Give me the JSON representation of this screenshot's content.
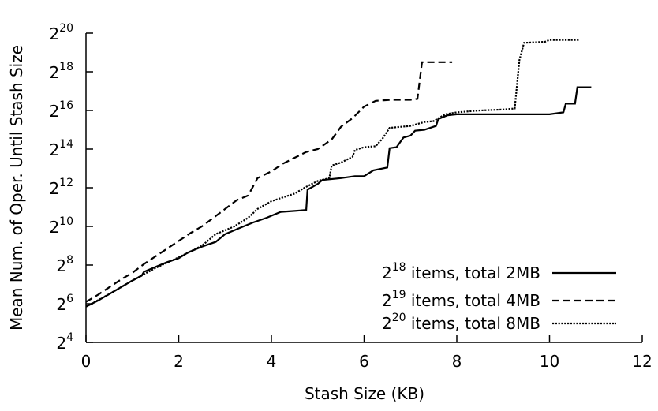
{
  "chart_data": {
    "type": "line",
    "title": "",
    "xlabel": "Stash Size (KB)",
    "ylabel": "Mean Num. of Oper. Until Stash Size",
    "xlim": [
      0,
      12
    ],
    "ylim_log2": [
      4,
      20
    ],
    "y_scale": "log2",
    "x_ticks": [
      0,
      2,
      4,
      6,
      8,
      10,
      12
    ],
    "y_ticks": [
      {
        "base": "2",
        "exp": "4"
      },
      {
        "base": "2",
        "exp": "6"
      },
      {
        "base": "2",
        "exp": "8"
      },
      {
        "base": "2",
        "exp": "10"
      },
      {
        "base": "2",
        "exp": "12"
      },
      {
        "base": "2",
        "exp": "14"
      },
      {
        "base": "2",
        "exp": "16"
      },
      {
        "base": "2",
        "exp": "18"
      },
      {
        "base": "2",
        "exp": "20"
      }
    ],
    "grid": false,
    "legend_position": "bottom-right",
    "series": [
      {
        "legend_base": "2",
        "legend_exp": "18",
        "legend_rest": " items, total 2MB",
        "dash": "solid",
        "color": "#000000",
        "points": [
          [
            0,
            5.85
          ],
          [
            0.25,
            6.15
          ],
          [
            0.5,
            6.5
          ],
          [
            0.75,
            6.85
          ],
          [
            1.0,
            7.2
          ],
          [
            1.2,
            7.45
          ],
          [
            1.25,
            7.65
          ],
          [
            1.5,
            7.9
          ],
          [
            1.75,
            8.15
          ],
          [
            2.0,
            8.35
          ],
          [
            2.2,
            8.65
          ],
          [
            2.5,
            8.95
          ],
          [
            2.8,
            9.2
          ],
          [
            3.0,
            9.6
          ],
          [
            3.3,
            9.9
          ],
          [
            3.6,
            10.2
          ],
          [
            3.9,
            10.45
          ],
          [
            4.0,
            10.55
          ],
          [
            4.2,
            10.75
          ],
          [
            4.5,
            10.8
          ],
          [
            4.75,
            10.85
          ],
          [
            4.78,
            11.9
          ],
          [
            5.0,
            12.2
          ],
          [
            5.1,
            12.4
          ],
          [
            5.5,
            12.5
          ],
          [
            5.8,
            12.6
          ],
          [
            6.0,
            12.6
          ],
          [
            6.2,
            12.9
          ],
          [
            6.5,
            13.05
          ],
          [
            6.55,
            14.05
          ],
          [
            6.7,
            14.1
          ],
          [
            6.85,
            14.6
          ],
          [
            7.0,
            14.7
          ],
          [
            7.1,
            14.95
          ],
          [
            7.3,
            15.0
          ],
          [
            7.55,
            15.2
          ],
          [
            7.6,
            15.55
          ],
          [
            7.8,
            15.75
          ],
          [
            8.0,
            15.8
          ],
          [
            9.5,
            15.8
          ],
          [
            10.0,
            15.8
          ],
          [
            10.3,
            15.9
          ],
          [
            10.35,
            16.35
          ],
          [
            10.55,
            16.35
          ],
          [
            10.6,
            17.2
          ],
          [
            10.9,
            17.2
          ]
        ]
      },
      {
        "legend_base": "2",
        "legend_exp": "19",
        "legend_rest": " items, total 4MB",
        "dash": "dashed",
        "color": "#000000",
        "points": [
          [
            0,
            6.1
          ],
          [
            0.25,
            6.45
          ],
          [
            0.5,
            6.85
          ],
          [
            0.75,
            7.25
          ],
          [
            1.0,
            7.6
          ],
          [
            1.25,
            8.05
          ],
          [
            1.5,
            8.45
          ],
          [
            1.75,
            8.85
          ],
          [
            2.0,
            9.25
          ],
          [
            2.25,
            9.65
          ],
          [
            2.5,
            10.0
          ],
          [
            2.75,
            10.45
          ],
          [
            3.0,
            10.9
          ],
          [
            3.25,
            11.35
          ],
          [
            3.5,
            11.6
          ],
          [
            3.6,
            12.05
          ],
          [
            3.7,
            12.5
          ],
          [
            4.0,
            12.85
          ],
          [
            4.25,
            13.25
          ],
          [
            4.5,
            13.55
          ],
          [
            4.75,
            13.85
          ],
          [
            5.0,
            14.0
          ],
          [
            5.3,
            14.5
          ],
          [
            5.5,
            15.15
          ],
          [
            5.75,
            15.6
          ],
          [
            6.0,
            16.2
          ],
          [
            6.25,
            16.5
          ],
          [
            6.6,
            16.55
          ],
          [
            7.0,
            16.55
          ],
          [
            7.15,
            16.6
          ],
          [
            7.25,
            18.5
          ],
          [
            7.9,
            18.5
          ]
        ]
      },
      {
        "legend_base": "2",
        "legend_exp": "20",
        "legend_rest": " items, total 8MB",
        "dash": "dotted",
        "color": "#000000",
        "points": [
          [
            0,
            5.85
          ],
          [
            0.5,
            6.5
          ],
          [
            1.0,
            7.2
          ],
          [
            1.5,
            7.85
          ],
          [
            2.0,
            8.4
          ],
          [
            2.5,
            9.0
          ],
          [
            2.8,
            9.6
          ],
          [
            3.2,
            10.0
          ],
          [
            3.5,
            10.45
          ],
          [
            3.7,
            10.9
          ],
          [
            4.0,
            11.3
          ],
          [
            4.5,
            11.7
          ],
          [
            4.75,
            12.05
          ],
          [
            5.0,
            12.35
          ],
          [
            5.25,
            12.5
          ],
          [
            5.3,
            13.15
          ],
          [
            5.5,
            13.3
          ],
          [
            5.75,
            13.6
          ],
          [
            5.8,
            13.95
          ],
          [
            6.0,
            14.1
          ],
          [
            6.25,
            14.15
          ],
          [
            6.4,
            14.55
          ],
          [
            6.55,
            15.1
          ],
          [
            7.0,
            15.2
          ],
          [
            7.3,
            15.4
          ],
          [
            7.5,
            15.45
          ],
          [
            7.75,
            15.8
          ],
          [
            8.0,
            15.9
          ],
          [
            8.5,
            16.0
          ],
          [
            9.0,
            16.05
          ],
          [
            9.25,
            16.1
          ],
          [
            9.35,
            18.6
          ],
          [
            9.45,
            19.5
          ],
          [
            9.9,
            19.55
          ],
          [
            10.0,
            19.65
          ],
          [
            10.65,
            19.65
          ]
        ]
      }
    ]
  }
}
